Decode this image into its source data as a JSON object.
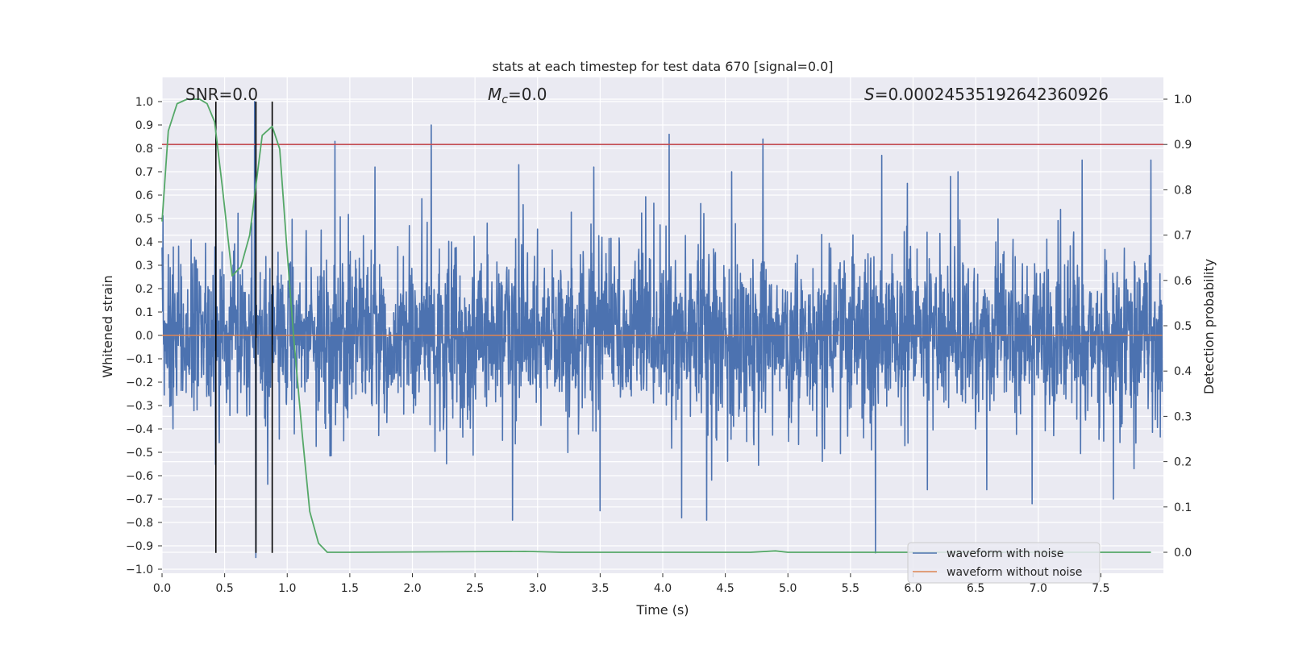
{
  "chart_data": {
    "type": "line",
    "title": "stats at each timestep for test data 670 [signal=0.0]",
    "xlabel": "Time (s)",
    "ylabel_left": "Whitened strain",
    "ylabel_right": "Detection probability",
    "xlim": [
      0.0,
      8.0
    ],
    "ylim_left": [
      -1.02,
      1.1
    ],
    "ylim_right": [
      -0.045,
      1.045
    ],
    "grid": true,
    "legend_position": "lower-right",
    "x_ticks": [
      "0.0",
      "0.5",
      "1.0",
      "1.5",
      "2.0",
      "2.5",
      "3.0",
      "3.5",
      "4.0",
      "4.5",
      "5.0",
      "5.5",
      "6.0",
      "6.5",
      "7.0",
      "7.5"
    ],
    "y_ticks_left": [
      "-1.0",
      "-0.9",
      "-0.8",
      "-0.7",
      "-0.6",
      "-0.5",
      "-0.4",
      "-0.3",
      "-0.2",
      "-0.1",
      "0.0",
      "0.1",
      "0.2",
      "0.3",
      "0.4",
      "0.5",
      "0.6",
      "0.7",
      "0.8",
      "0.9",
      "1.0"
    ],
    "y_ticks_right": [
      "0.0",
      "0.1",
      "0.2",
      "0.3",
      "0.4",
      "0.5",
      "0.6",
      "0.7",
      "0.8",
      "0.9",
      "1.0"
    ],
    "annotations": {
      "snr": "SNR=0.0",
      "mc_symbol": "M",
      "mc_sub": "c",
      "mc_value": "=0.0",
      "s_symbol": "S",
      "s_value": "=0.00024535192642360926"
    },
    "series": [
      {
        "name": "waveform with noise",
        "axis": "left",
        "color": "#4c72b0",
        "description": "whitened noise, approx +/-0.3 band with spikes",
        "spikes_up": [
          [
            0.43,
            0.64
          ],
          [
            0.74,
            1.0
          ],
          [
            1.38,
            0.83
          ],
          [
            1.7,
            0.72
          ],
          [
            2.15,
            0.9
          ],
          [
            2.85,
            0.73
          ],
          [
            3.45,
            0.72
          ],
          [
            4.05,
            0.86
          ],
          [
            4.55,
            0.7
          ],
          [
            4.8,
            0.84
          ],
          [
            5.75,
            0.77
          ],
          [
            6.3,
            0.68
          ],
          [
            7.35,
            0.75
          ],
          [
            7.9,
            0.75
          ]
        ],
        "spikes_down": [
          [
            0.75,
            -0.95
          ],
          [
            2.8,
            -0.79
          ],
          [
            3.5,
            -0.75
          ],
          [
            4.15,
            -0.78
          ],
          [
            4.35,
            -0.79
          ],
          [
            5.7,
            -0.93
          ],
          [
            6.95,
            -0.72
          ],
          [
            7.6,
            -0.7
          ]
        ]
      },
      {
        "name": "waveform without noise",
        "axis": "left",
        "color": "#dd8452",
        "x": [
          0.0,
          7.99
        ],
        "y": [
          0.0,
          0.0
        ]
      },
      {
        "name": "detection probability",
        "axis": "right",
        "color": "#55a868",
        "x": [
          0.0,
          0.05,
          0.12,
          0.2,
          0.3,
          0.36,
          0.42,
          0.48,
          0.56,
          0.63,
          0.7,
          0.8,
          0.88,
          0.94,
          1.0,
          1.05,
          1.12,
          1.18,
          1.25,
          1.32,
          1.4,
          1.5,
          2.9,
          3.2,
          4.7,
          4.9,
          5.0,
          5.5,
          7.9
        ],
        "y": [
          0.73,
          0.93,
          0.99,
          1.0,
          1.0,
          0.99,
          0.95,
          0.81,
          0.61,
          0.63,
          0.7,
          0.92,
          0.94,
          0.89,
          0.66,
          0.48,
          0.26,
          0.09,
          0.02,
          0.0,
          0.0,
          0.0,
          0.002,
          0.0,
          0.0,
          0.003,
          0.0,
          0.0,
          0.0
        ]
      }
    ],
    "threshold_line": {
      "axis": "right",
      "value": 0.9,
      "color": "#c44e52"
    },
    "vertical_markers": {
      "color": "#000000",
      "x": [
        0.43,
        0.75,
        0.88
      ],
      "ymin": -0.93,
      "ymax": 1.0
    }
  }
}
